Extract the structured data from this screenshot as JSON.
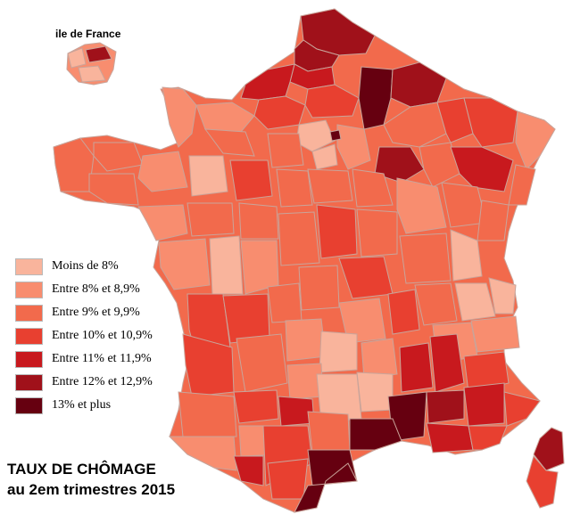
{
  "inset_label": "ile de France",
  "title_line1": "TAUX DE CHÔMAGE",
  "title_line2": "au 2em trimestres 2015",
  "legend": [
    {
      "label": "Moins de 8%",
      "color": "#f9b49c"
    },
    {
      "label": "Entre 8% et 8,9%",
      "color": "#f88d6f"
    },
    {
      "label": "Entre 9% et 9,9%",
      "color": "#f26a4c"
    },
    {
      "label": "Entre 10% et 10,9%",
      "color": "#e84030"
    },
    {
      "label": "Entre 11% et 11,9%",
      "color": "#c8191e"
    },
    {
      "label": "Entre 12% et 12,9%",
      "color": "#a0111a"
    },
    {
      "label": "13% et plus",
      "color": "#660010"
    }
  ]
}
